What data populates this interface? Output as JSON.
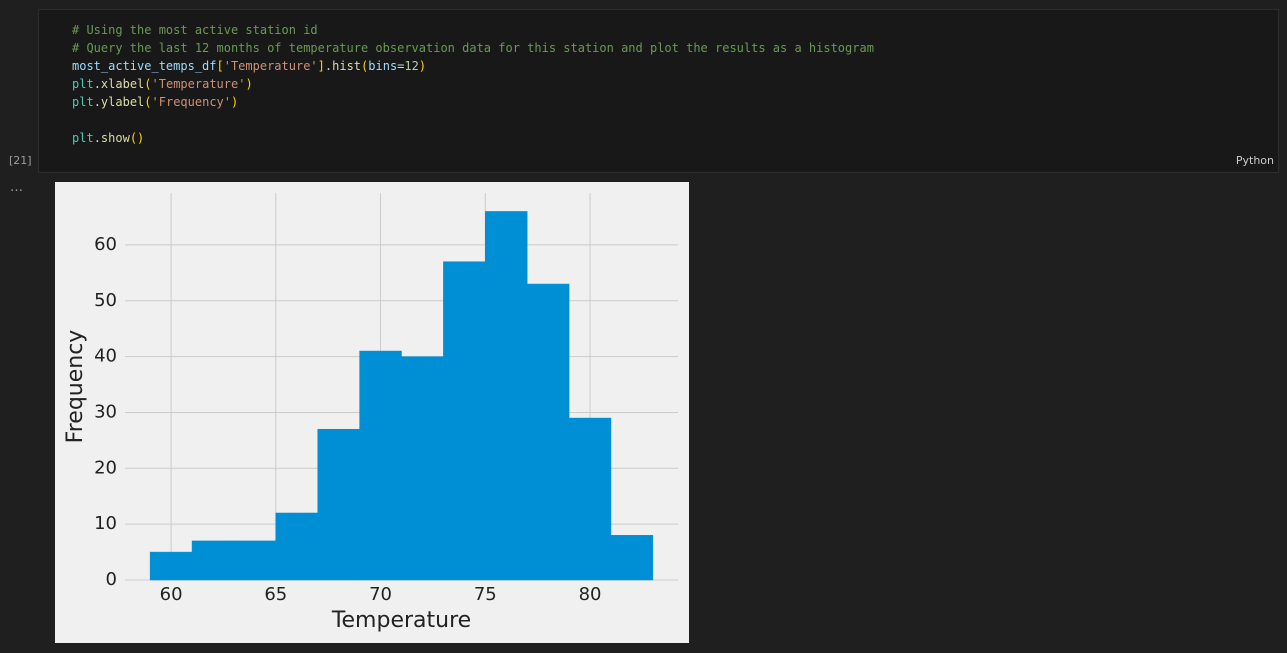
{
  "cell": {
    "execution_count": "[21]",
    "language": "Python",
    "output_marker": "…",
    "code_lines": [
      [
        {
          "text": "# Using the most active station id",
          "color": "#6a9955"
        }
      ],
      [
        {
          "text": "# Query the last 12 months of temperature observation data for this station and plot the results as a histogram",
          "color": "#6a9955"
        }
      ],
      [
        {
          "text": "most_active_temps_df",
          "color": "#9cdcfe"
        },
        {
          "text": "[",
          "color": "#ffd700"
        },
        {
          "text": "'Temperature'",
          "color": "#ce9178"
        },
        {
          "text": "]",
          "color": "#ffd700"
        },
        {
          "text": ".",
          "color": "#d4d4d4"
        },
        {
          "text": "hist",
          "color": "#dcdcaa"
        },
        {
          "text": "(",
          "color": "#ffd700"
        },
        {
          "text": "bins",
          "color": "#9cdcfe"
        },
        {
          "text": "=",
          "color": "#d4d4d4"
        },
        {
          "text": "12",
          "color": "#b5cea8"
        },
        {
          "text": ")",
          "color": "#ffd700"
        }
      ],
      [
        {
          "text": "plt",
          "color": "#4ec9b0"
        },
        {
          "text": ".",
          "color": "#d4d4d4"
        },
        {
          "text": "xlabel",
          "color": "#dcdcaa"
        },
        {
          "text": "(",
          "color": "#ffd700"
        },
        {
          "text": "'Temperature'",
          "color": "#ce9178"
        },
        {
          "text": ")",
          "color": "#ffd700"
        }
      ],
      [
        {
          "text": "plt",
          "color": "#4ec9b0"
        },
        {
          "text": ".",
          "color": "#d4d4d4"
        },
        {
          "text": "ylabel",
          "color": "#dcdcaa"
        },
        {
          "text": "(",
          "color": "#ffd700"
        },
        {
          "text": "'Frequency'",
          "color": "#ce9178"
        },
        {
          "text": ")",
          "color": "#ffd700"
        }
      ],
      [],
      [
        {
          "text": "plt",
          "color": "#4ec9b0"
        },
        {
          "text": ".",
          "color": "#d4d4d4"
        },
        {
          "text": "show",
          "color": "#dcdcaa"
        },
        {
          "text": "()",
          "color": "#ffd700"
        }
      ]
    ]
  },
  "chart_data": {
    "type": "histogram",
    "x_label": "Temperature",
    "y_label": "Frequency",
    "bins": [
      59,
      61,
      63,
      65,
      67,
      69,
      71,
      73,
      75,
      77,
      79,
      81,
      83
    ],
    "values": [
      5,
      7,
      7,
      12,
      27,
      41,
      40,
      57,
      66,
      53,
      29,
      8
    ],
    "color": "#008fd5",
    "xlim": [
      57.8,
      84.2
    ],
    "ylim": [
      0,
      69.3
    ],
    "xticks": [
      60,
      65,
      70,
      75,
      80
    ],
    "yticks": [
      0,
      10,
      20,
      30,
      40,
      50,
      60
    ],
    "grid": true
  }
}
